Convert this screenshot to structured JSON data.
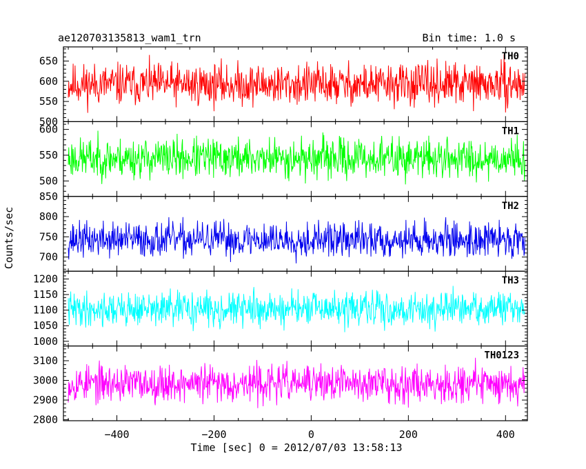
{
  "chart_data": {
    "type": "line",
    "title": "ae120703135813_wam1_trn",
    "bin_time": "Bin time: 1.0 s",
    "xlabel": "Time [sec] 0 = 2012/07/03 13:58:13",
    "ylabel": "Counts/sec",
    "xlim": [
      -510,
      445
    ],
    "x_data_range": [
      -500,
      440
    ],
    "x_ticks": [
      -400,
      -200,
      0,
      200,
      400
    ],
    "x_tick_labels": [
      "−400",
      "−200",
      "0",
      "200",
      "400"
    ],
    "grid": false,
    "panels": [
      {
        "name": "TH0",
        "color": "#ff0000",
        "ylim": [
          500,
          685
        ],
        "y_ticks": [
          500,
          550,
          600,
          650
        ],
        "mean": 592,
        "spread": 32,
        "seed": 11
      },
      {
        "name": "TH1",
        "color": "#00ff00",
        "ylim": [
          470,
          615
        ],
        "y_ticks": [
          500,
          550,
          600
        ],
        "mean": 544,
        "spread": 24,
        "seed": 23
      },
      {
        "name": "TH2",
        "color": "#0000ee",
        "ylim": [
          665,
          850
        ],
        "y_ticks": [
          700,
          750,
          800,
          850
        ],
        "mean": 743,
        "spread": 27,
        "seed": 37
      },
      {
        "name": "TH3",
        "color": "#00ffff",
        "ylim": [
          985,
          1225
        ],
        "y_ticks": [
          1000,
          1050,
          1100,
          1150,
          1200
        ],
        "mean": 1103,
        "spread": 34,
        "seed": 41
      },
      {
        "name": "TH0123",
        "color": "#ff00ff",
        "ylim": [
          2795,
          3175
        ],
        "y_ticks": [
          2800,
          2900,
          3000,
          3100
        ],
        "mean": 2985,
        "spread": 58,
        "seed": 53
      }
    ]
  }
}
